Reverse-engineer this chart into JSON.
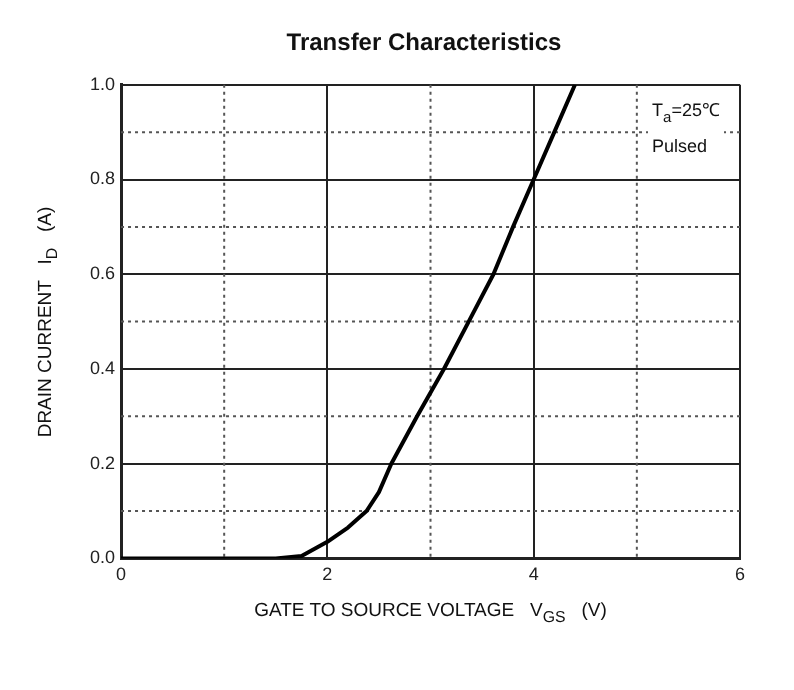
{
  "chart_data": {
    "type": "line",
    "title": "Transfer Characteristics",
    "xlabel": "GATE TO SOURCE VOLTAGE   V$_{GS}$   (V)",
    "ylabel": "DRAIN CURRENT   I$_{D}$   (A)",
    "annotations": [
      "T$_{a}$=25℃",
      "Pulsed"
    ],
    "series": [
      {
        "color": "#000000",
        "x": [
          0,
          1.5,
          1.75,
          2.0,
          2.2,
          2.38,
          2.5,
          2.62,
          2.87,
          3.13,
          3.37,
          3.61,
          3.8,
          4.0,
          4.2,
          4.4
        ],
        "values": [
          0,
          0,
          0.005,
          0.035,
          0.065,
          0.1,
          0.14,
          0.2,
          0.3,
          0.4,
          0.5,
          0.6,
          0.7,
          0.8,
          0.9,
          1.0
        ]
      }
    ],
    "xlim": [
      0,
      6
    ],
    "xticks": [
      0,
      2,
      4,
      6
    ],
    "ylim": [
      0,
      1.0
    ],
    "yticks": [
      {
        "value": 0,
        "label": "0.0"
      },
      0.2,
      0.4,
      0.6,
      0.8,
      {
        "value": 1.0,
        "label": "1.0"
      }
    ],
    "grid": true,
    "legend": false,
    "marker": "none",
    "line_style": "solid"
  }
}
